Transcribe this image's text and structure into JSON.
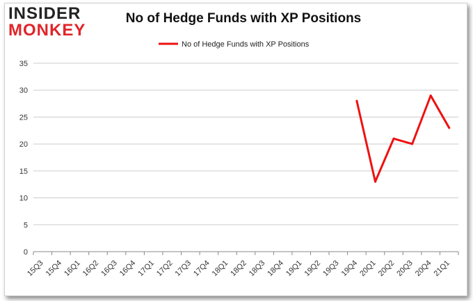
{
  "brand": {
    "line1": "INSIDER",
    "line2": "MONKEY"
  },
  "chart_data": {
    "type": "line",
    "title": "No of Hedge Funds with XP Positions",
    "categories": [
      "15Q3",
      "15Q4",
      "16Q1",
      "16Q2",
      "16Q3",
      "16Q4",
      "17Q1",
      "17Q2",
      "17Q3",
      "17Q4",
      "18Q1",
      "18Q2",
      "18Q3",
      "18Q4",
      "19Q1",
      "19Q2",
      "19Q3",
      "19Q4",
      "20Q1",
      "20Q2",
      "20Q3",
      "20Q4",
      "21Q1"
    ],
    "series": [
      {
        "name": "No of Hedge Funds with XP Positions",
        "color": "#ee1111",
        "values": [
          null,
          null,
          null,
          null,
          null,
          null,
          null,
          null,
          null,
          null,
          null,
          null,
          null,
          null,
          null,
          null,
          null,
          28,
          13,
          21,
          20,
          29,
          23
        ]
      }
    ],
    "ylim": [
      0,
      35
    ],
    "yticks": [
      0,
      5,
      10,
      15,
      20,
      25,
      30,
      35
    ],
    "grid": true,
    "legend_position": "top-center",
    "xlabel": "",
    "ylabel": ""
  }
}
